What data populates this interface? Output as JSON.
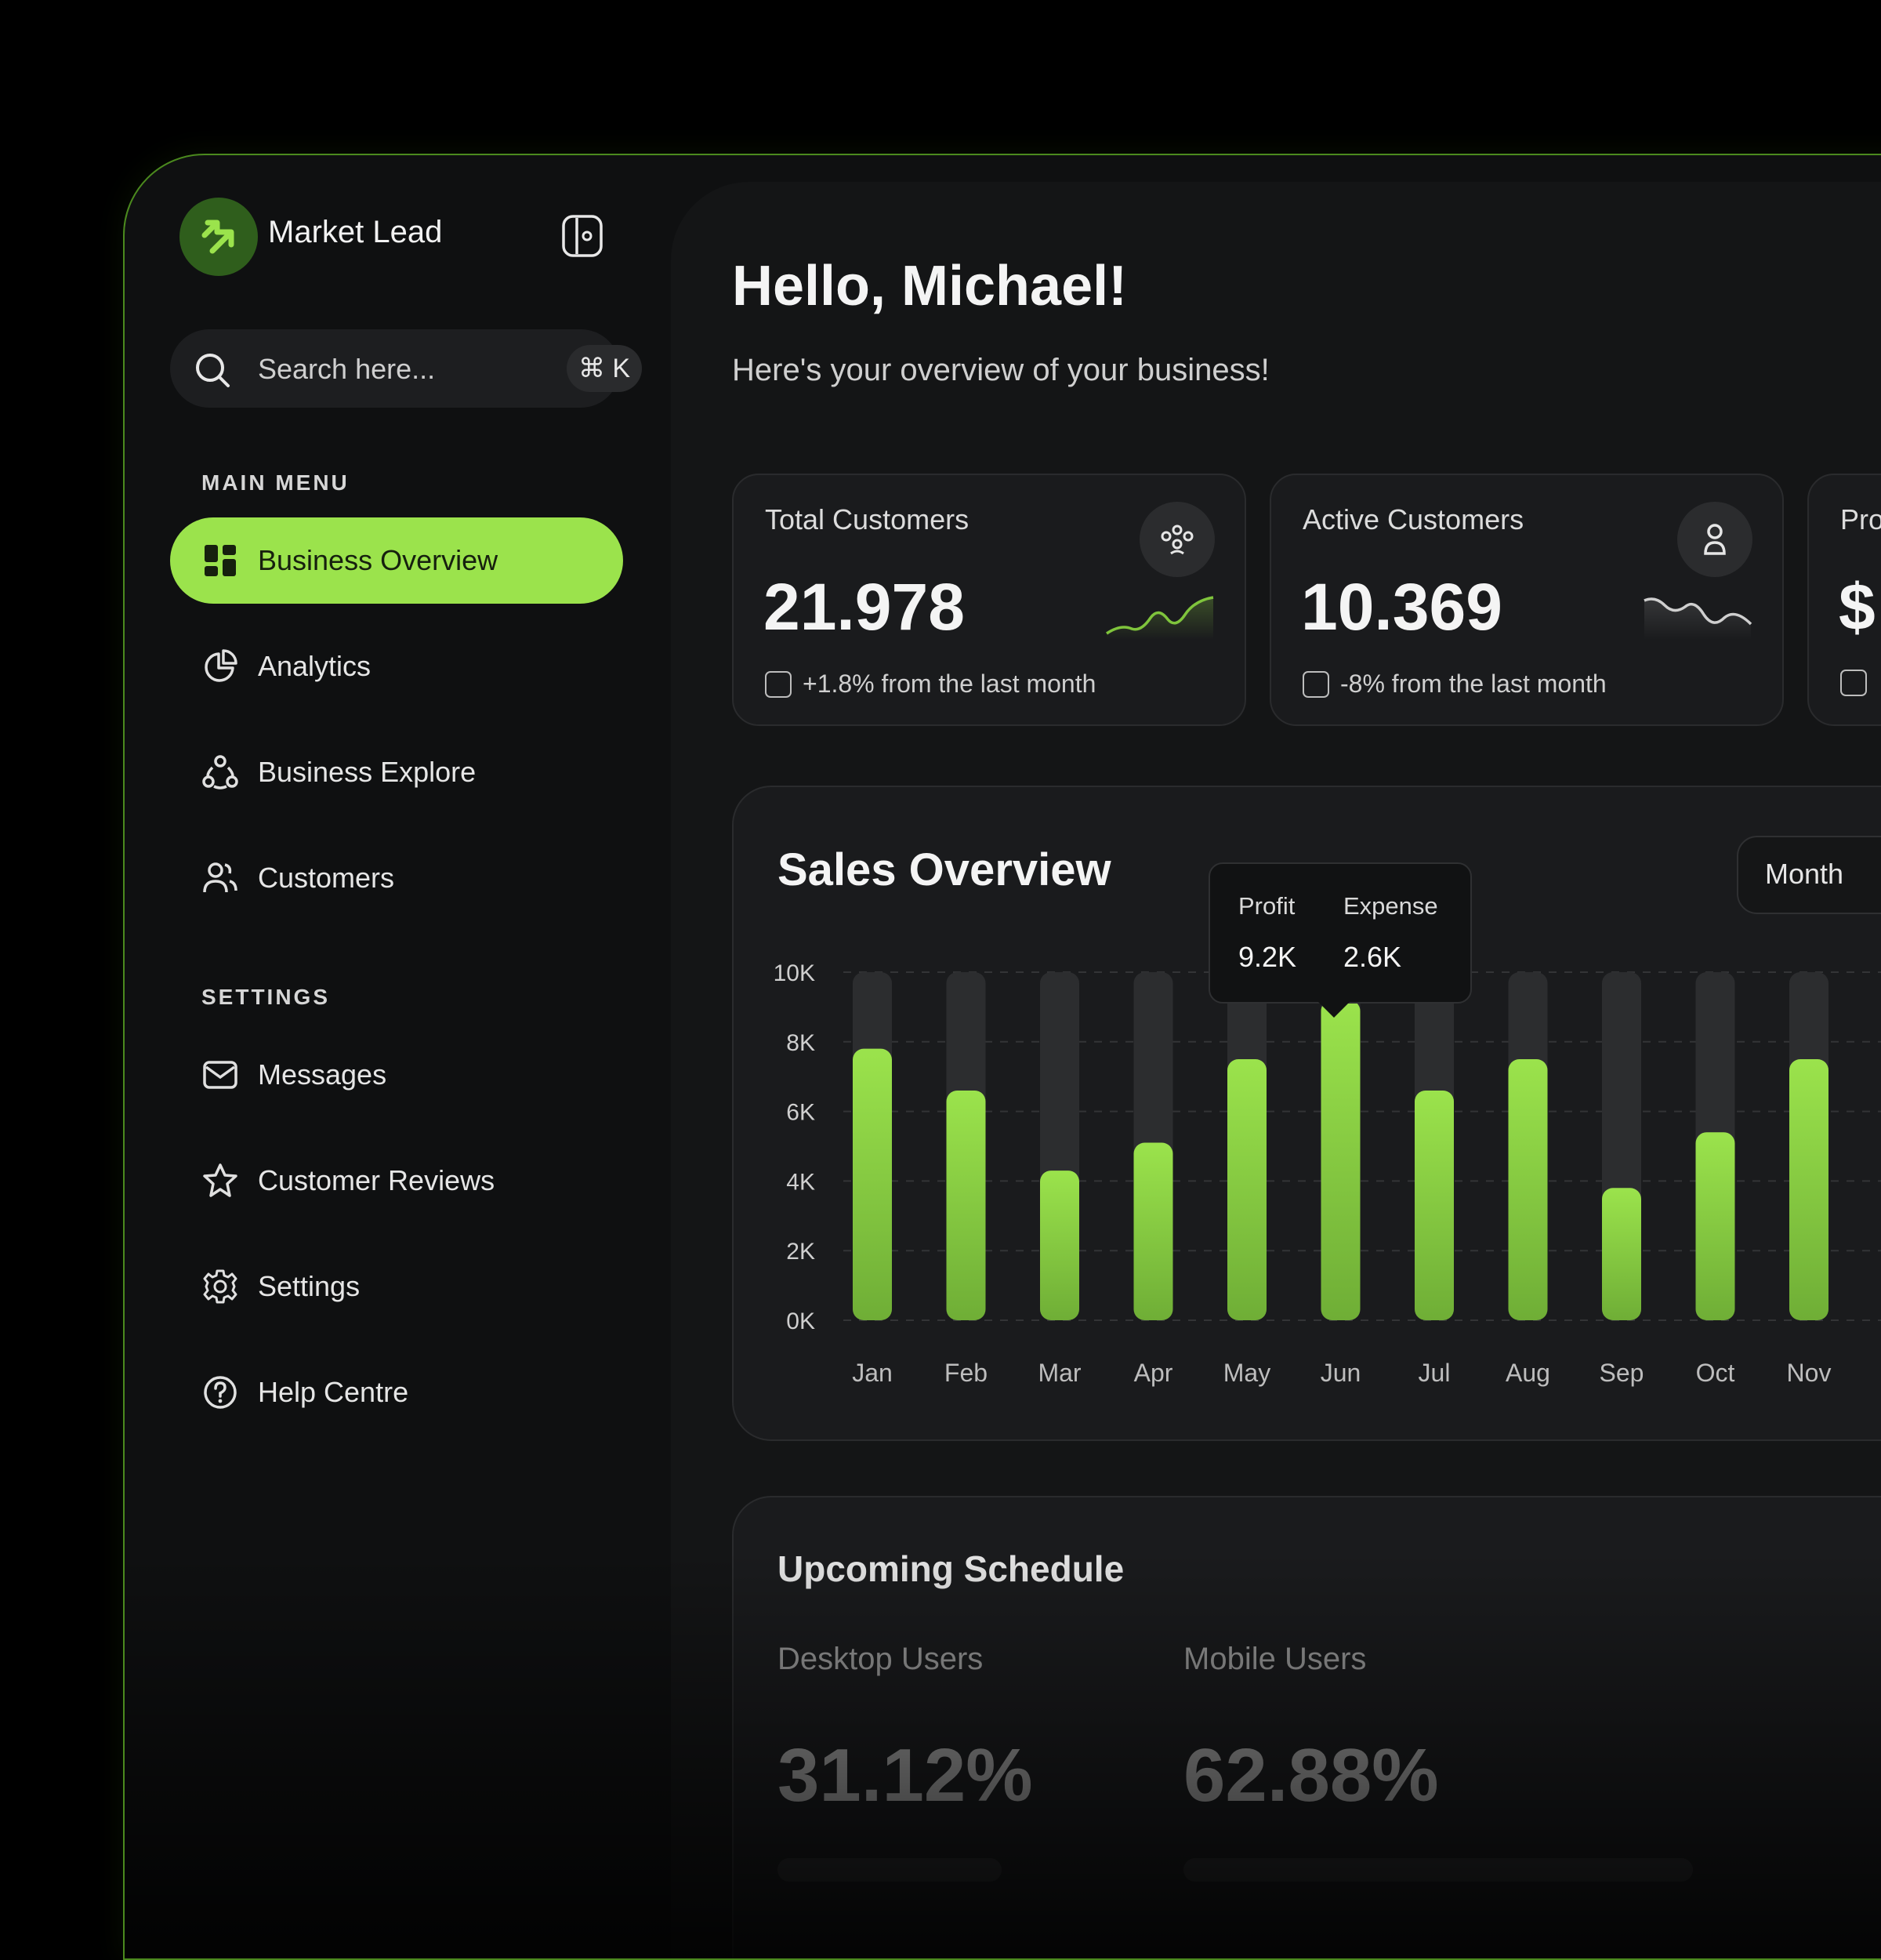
{
  "app": {
    "brand": "Market Lead"
  },
  "search": {
    "placeholder": "Search here...",
    "shortcut": "⌘ K"
  },
  "sidebar": {
    "main_menu_label": "MAIN MENU",
    "settings_label": "SETTINGS",
    "main_items": [
      {
        "label": "Business Overview",
        "icon": "grid-icon",
        "active": true
      },
      {
        "label": "Analytics",
        "icon": "pie-chart-icon"
      },
      {
        "label": "Business Explore",
        "icon": "network-icon"
      },
      {
        "label": "Customers",
        "icon": "users-icon"
      }
    ],
    "settings_items": [
      {
        "label": "Messages",
        "icon": "mail-icon"
      },
      {
        "label": "Customer Reviews",
        "icon": "star-icon"
      },
      {
        "label": "Settings",
        "icon": "gear-icon"
      },
      {
        "label": "Help Centre",
        "icon": "help-icon"
      }
    ]
  },
  "header": {
    "greeting": "Hello, Michael!",
    "subtitle": "Here's your overview of your business!"
  },
  "cards": [
    {
      "title": "Total Customers",
      "value": "21.978",
      "change": "+1.8% from the last month",
      "icon": "group-icon"
    },
    {
      "title": "Active Customers",
      "value": "10.369",
      "change": "-8% from the last month",
      "icon": "user-icon"
    },
    {
      "title": "Pro",
      "value": "$",
      "change": "",
      "icon": ""
    }
  ],
  "sales": {
    "title": "Sales Overview",
    "period": "Month",
    "tooltip": {
      "profit_label": "Profit",
      "expense_label": "Expense",
      "profit_value": "9.2K",
      "expense_value": "2.6K"
    }
  },
  "chart_data": {
    "type": "bar",
    "title": "Sales Overview",
    "categories": [
      "Jan",
      "Feb",
      "Mar",
      "Apr",
      "May",
      "Jun",
      "Jul",
      "Aug",
      "Sep",
      "Oct",
      "Nov"
    ],
    "series": [
      {
        "name": "Profit",
        "values": [
          7.8,
          6.6,
          4.3,
          5.1,
          7.5,
          9.2,
          6.6,
          7.5,
          3.8,
          5.4,
          7.5
        ]
      }
    ],
    "ylim": [
      0,
      10
    ],
    "yticks": [
      "0K",
      "2K",
      "4K",
      "6K",
      "8K",
      "10K"
    ],
    "grid": true,
    "colors": {
      "bar": "#9be34c",
      "track": "#2c2d2f"
    }
  },
  "schedule": {
    "title": "Upcoming Schedule",
    "desktop_label": "Desktop Users",
    "desktop_value": "31.12%",
    "mobile_label": "Mobile Users",
    "mobile_value": "62.88%"
  }
}
